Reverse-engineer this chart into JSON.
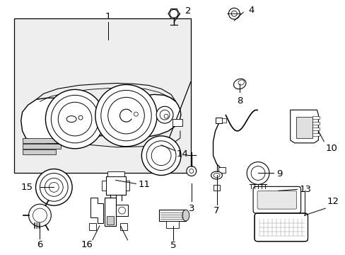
{
  "bg_color": "#ffffff",
  "fig_width": 4.89,
  "fig_height": 3.6,
  "dpi": 100,
  "line_color": "#000000",
  "text_color": "#000000",
  "gray_fill": "#d8d8d8",
  "light_gray": "#eeeeee"
}
